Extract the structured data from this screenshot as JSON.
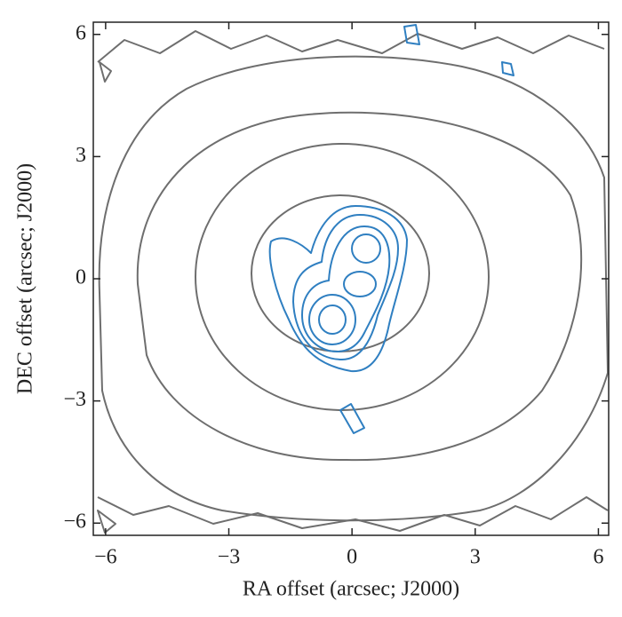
{
  "chart_data": {
    "type": "contour",
    "xlabel": "RA offset (arcsec; J2000)",
    "ylabel": "DEC offset (arcsec; J2000)",
    "xlim": [
      -6.3,
      6.25
    ],
    "ylim": [
      -6.3,
      6.3
    ],
    "xticks": [
      {
        "value": -6,
        "label": "−6"
      },
      {
        "value": -3,
        "label": "−3"
      },
      0,
      3,
      6
    ],
    "yticks": [
      {
        "value": -6,
        "label": "−6"
      },
      {
        "value": -3,
        "label": "−3"
      },
      0,
      3,
      6
    ],
    "colors": [
      "#6e6e6e",
      "#2f7fc1"
    ]
  }
}
